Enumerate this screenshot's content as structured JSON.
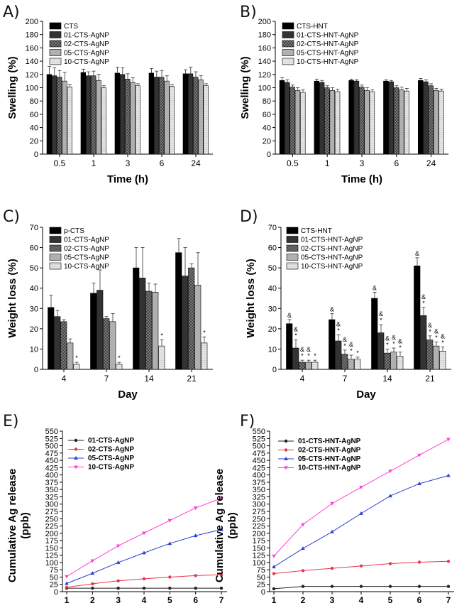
{
  "colors": {
    "black": "#000000",
    "dark": "#333333",
    "check": "#666666",
    "gray": "#b0b0b0",
    "light": "#e0e0e0",
    "line1": "#222222",
    "line2": "#e8354f",
    "line3": "#2a3fd0",
    "line4": "#ff3fd8"
  },
  "chart_data": [
    {
      "panel": "A)",
      "type": "bar",
      "xlabel": "Time (h)",
      "ylabel": "Swelling (%)",
      "ylim": [
        0,
        200
      ],
      "yticks": [
        "0",
        "20",
        "40",
        "60",
        "80",
        "100",
        "120",
        "140",
        "160",
        "180",
        "200"
      ],
      "categories": [
        "0.5",
        "1",
        "3",
        "6",
        "24"
      ],
      "series": [
        {
          "name": "CTS",
          "fill": "black",
          "values": [
            120,
            123,
            122,
            122,
            121
          ],
          "errors": [
            12,
            5,
            9,
            7,
            6
          ]
        },
        {
          "name": "01-CTS-AgNP",
          "fill": "dark",
          "values": [
            118,
            118,
            120,
            116,
            121
          ],
          "errors": [
            12,
            6,
            10,
            9,
            10
          ]
        },
        {
          "name": "02-CTS-AgNP",
          "fill": "check",
          "values": [
            116,
            118,
            113,
            116,
            116
          ],
          "errors": [
            10,
            7,
            8,
            10,
            8
          ]
        },
        {
          "name": "05-CTS-AgNP",
          "fill": "gray",
          "values": [
            110,
            111,
            108,
            110,
            112
          ],
          "errors": [
            13,
            9,
            7,
            8,
            6
          ]
        },
        {
          "name": "10-CTS-AgNP",
          "fill": "light",
          "values": [
            101,
            100,
            103,
            102,
            103
          ],
          "errors": [
            4,
            3,
            3,
            3,
            3
          ]
        }
      ]
    },
    {
      "panel": "B)",
      "type": "bar",
      "xlabel": "Time (h)",
      "ylabel": "Swelling (%)",
      "ylim": [
        0,
        200
      ],
      "yticks": [
        "0",
        "20",
        "40",
        "60",
        "80",
        "100",
        "120",
        "140",
        "160",
        "180",
        "200"
      ],
      "categories": [
        "0.5",
        "1",
        "3",
        "6",
        "24"
      ],
      "series": [
        {
          "name": "CTS-HNT",
          "fill": "black",
          "values": [
            111,
            110,
            111,
            110,
            111
          ],
          "errors": [
            4,
            3,
            2,
            2,
            3
          ]
        },
        {
          "name": "01-CTS-HNT-AgNP",
          "fill": "dark",
          "values": [
            108,
            108,
            110,
            109,
            109
          ],
          "errors": [
            4,
            3,
            2,
            2,
            3
          ]
        },
        {
          "name": "02-CTS-HNT-AgNP",
          "fill": "check",
          "values": [
            101,
            100,
            101,
            100,
            103
          ],
          "errors": [
            3,
            3,
            3,
            3,
            3
          ]
        },
        {
          "name": "05-CTS-HNT-AgNP",
          "fill": "gray",
          "values": [
            96,
            96,
            96,
            97,
            96
          ],
          "errors": [
            4,
            4,
            4,
            4,
            3
          ]
        },
        {
          "name": "10-CTS-HNT-AgNP",
          "fill": "light",
          "values": [
            93,
            94,
            94,
            95,
            95
          ],
          "errors": [
            4,
            4,
            3,
            4,
            3
          ]
        }
      ]
    },
    {
      "panel": "C)",
      "type": "bar",
      "xlabel": "Day",
      "ylabel": "Weight loss (%)",
      "ylim": [
        0,
        70
      ],
      "yticks": [
        "0",
        "10",
        "20",
        "30",
        "40",
        "50",
        "60",
        "70"
      ],
      "categories": [
        "4",
        "7",
        "14",
        "21"
      ],
      "series": [
        {
          "name": "p-CTS",
          "fill": "black",
          "values": [
            30.5,
            37.5,
            50,
            57.5
          ],
          "errors": [
            6,
            5,
            10,
            7
          ]
        },
        {
          "name": "01-CTS-AgNP",
          "fill": "dark",
          "values": [
            26,
            39,
            45,
            46
          ],
          "errors": [
            3,
            10,
            15,
            14
          ]
        },
        {
          "name": "02-CTS-AgNP",
          "fill": "check",
          "values": [
            23.5,
            25,
            38.5,
            50
          ],
          "errors": [
            1,
            1,
            4,
            2
          ]
        },
        {
          "name": "05-CTS-AgNP",
          "fill": "gray",
          "values": [
            13,
            23.5,
            38,
            41.5
          ],
          "errors": [
            2,
            4,
            4,
            16
          ]
        },
        {
          "name": "10-CTS-AgNP",
          "fill": "light",
          "values": [
            2.5,
            2.5,
            11.5,
            13
          ],
          "errors": [
            1,
            1,
            3,
            3
          ]
        }
      ],
      "annotations": [
        {
          "series": 4,
          "cat": 0,
          "text": "*"
        },
        {
          "series": 4,
          "cat": 1,
          "text": "*"
        },
        {
          "series": 4,
          "cat": 2,
          "text": "*"
        },
        {
          "series": 4,
          "cat": 3,
          "text": "*"
        }
      ]
    },
    {
      "panel": "D)",
      "type": "bar",
      "xlabel": "Day",
      "ylabel": "Weight loss (%)",
      "ylim": [
        0,
        70
      ],
      "yticks": [
        "0",
        "10",
        "20",
        "30",
        "40",
        "50",
        "60",
        "70"
      ],
      "categories": [
        "4",
        "7",
        "14",
        "21"
      ],
      "series": [
        {
          "name": "CTS-HNT",
          "fill": "black",
          "values": [
            22.5,
            24.5,
            35,
            51
          ],
          "errors": [
            2,
            3,
            3,
            4
          ]
        },
        {
          "name": "01-CTS-HNT-AgNP",
          "fill": "dark",
          "values": [
            10.5,
            14,
            18,
            26.5
          ],
          "errors": [
            4,
            3,
            4,
            4
          ]
        },
        {
          "name": "02-CTS-HNT-AgNP",
          "fill": "check",
          "values": [
            3.5,
            7.5,
            8,
            14.5
          ],
          "errors": [
            1,
            2,
            2,
            2
          ]
        },
        {
          "name": "05-CTS-HNT-AgNP",
          "fill": "gray",
          "values": [
            3.5,
            5,
            8.5,
            11.5
          ],
          "errors": [
            1,
            2,
            2,
            2
          ]
        },
        {
          "name": "10-CTS-HNT-AgNP",
          "fill": "light",
          "values": [
            3.5,
            5,
            6.5,
            9
          ],
          "errors": [
            1,
            1,
            2,
            2
          ]
        }
      ],
      "annotations": [
        {
          "series": 0,
          "cat": 0,
          "text": "&"
        },
        {
          "series": 1,
          "cat": 0,
          "text": "&*"
        },
        {
          "series": 2,
          "cat": 0,
          "text": "&*"
        },
        {
          "series": 3,
          "cat": 0,
          "text": "&*"
        },
        {
          "series": 4,
          "cat": 0,
          "text": "*"
        },
        {
          "series": 0,
          "cat": 1,
          "text": "&"
        },
        {
          "series": 1,
          "cat": 1,
          "text": "&*"
        },
        {
          "series": 2,
          "cat": 1,
          "text": "&*"
        },
        {
          "series": 3,
          "cat": 1,
          "text": "&*"
        },
        {
          "series": 4,
          "cat": 1,
          "text": "*"
        },
        {
          "series": 0,
          "cat": 2,
          "text": "&"
        },
        {
          "series": 1,
          "cat": 2,
          "text": "&*"
        },
        {
          "series": 2,
          "cat": 2,
          "text": "&*"
        },
        {
          "series": 3,
          "cat": 2,
          "text": "&*"
        },
        {
          "series": 4,
          "cat": 2,
          "text": "&*"
        },
        {
          "series": 0,
          "cat": 3,
          "text": "&"
        },
        {
          "series": 1,
          "cat": 3,
          "text": "&*"
        },
        {
          "series": 2,
          "cat": 3,
          "text": "&*"
        },
        {
          "series": 3,
          "cat": 3,
          "text": "&*"
        },
        {
          "series": 4,
          "cat": 3,
          "text": "&*"
        }
      ]
    },
    {
      "panel": "E)",
      "type": "line",
      "xlabel": "Day",
      "ylabel": "Cumulative Ag release (ppb)",
      "ylim": [
        0,
        550
      ],
      "xlim": [
        1,
        7
      ],
      "yticks": [
        "0",
        "25",
        "50",
        "75",
        "100",
        "125",
        "150",
        "175",
        "200",
        "225",
        "250",
        "275",
        "300",
        "325",
        "350",
        "375",
        "400",
        "425",
        "450",
        "475",
        "500",
        "525",
        "550"
      ],
      "x": [
        1,
        2,
        3,
        4,
        5,
        6,
        7
      ],
      "series": [
        {
          "name": "01-CTS-AgNP",
          "color": "line1",
          "marker": "circle",
          "values": [
            12,
            12,
            12,
            12,
            12,
            12,
            12
          ]
        },
        {
          "name": "02-CTS-AgNP",
          "color": "line2",
          "marker": "circle",
          "values": [
            15,
            27,
            37,
            44,
            50,
            55,
            58
          ]
        },
        {
          "name": "05-CTS-AgNP",
          "color": "line3",
          "marker": "triangle",
          "values": [
            28,
            63,
            100,
            133,
            165,
            192,
            213
          ]
        },
        {
          "name": "10-CTS-AgNP",
          "color": "line4",
          "marker": "triangle-down",
          "values": [
            52,
            106,
            157,
            201,
            244,
            287,
            320
          ]
        }
      ]
    },
    {
      "panel": "F)",
      "type": "line",
      "xlabel": "Day",
      "ylabel": "Cumulative Ag release (ppb)",
      "ylim": [
        0,
        550
      ],
      "xlim": [
        1,
        7
      ],
      "yticks": [
        "0",
        "25",
        "50",
        "75",
        "100",
        "125",
        "150",
        "175",
        "200",
        "225",
        "250",
        "275",
        "300",
        "325",
        "350",
        "375",
        "400",
        "425",
        "450",
        "475",
        "500",
        "525",
        "550"
      ],
      "x": [
        1,
        2,
        3,
        4,
        5,
        6,
        7
      ],
      "series": [
        {
          "name": "01-CTS-HNT-AgNP",
          "color": "line1",
          "marker": "circle",
          "values": [
            10,
            18,
            18,
            18,
            18,
            18,
            18
          ]
        },
        {
          "name": "02-CTS-HNT-AgNP",
          "color": "line2",
          "marker": "circle",
          "values": [
            62,
            72,
            80,
            88,
            96,
            101,
            104
          ]
        },
        {
          "name": "05-CTS-HNT-AgNP",
          "color": "line3",
          "marker": "triangle",
          "values": [
            85,
            148,
            205,
            268,
            328,
            370,
            398
          ]
        },
        {
          "name": "10-CTS-HNT-AgNP",
          "color": "line4",
          "marker": "triangle-down",
          "values": [
            122,
            230,
            302,
            358,
            413,
            468,
            522
          ]
        }
      ]
    }
  ]
}
